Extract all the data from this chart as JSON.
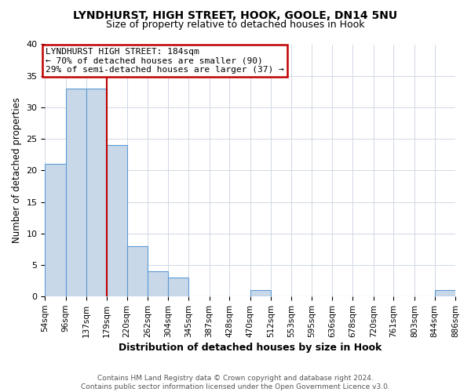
{
  "title": "LYNDHURST, HIGH STREET, HOOK, GOOLE, DN14 5NU",
  "subtitle": "Size of property relative to detached houses in Hook",
  "xlabel": "Distribution of detached houses by size in Hook",
  "ylabel": "Number of detached properties",
  "bin_edges": [
    54,
    96,
    137,
    179,
    220,
    262,
    304,
    345,
    387,
    428,
    470,
    512,
    553,
    595,
    636,
    678,
    720,
    761,
    803,
    844,
    886
  ],
  "bin_labels": [
    "54sqm",
    "96sqm",
    "137sqm",
    "179sqm",
    "220sqm",
    "262sqm",
    "304sqm",
    "345sqm",
    "387sqm",
    "428sqm",
    "470sqm",
    "512sqm",
    "553sqm",
    "595sqm",
    "636sqm",
    "678sqm",
    "720sqm",
    "761sqm",
    "803sqm",
    "844sqm",
    "886sqm"
  ],
  "counts": [
    21,
    33,
    33,
    24,
    8,
    4,
    3,
    0,
    0,
    0,
    1,
    0,
    0,
    0,
    0,
    0,
    0,
    0,
    0,
    1
  ],
  "bar_color": "#c8d8e8",
  "bar_edge_color": "#5b9bd5",
  "vline_x": 179,
  "vline_color": "#c00000",
  "annotation_title": "LYNDHURST HIGH STREET: 184sqm",
  "annotation_line1": "← 70% of detached houses are smaller (90)",
  "annotation_line2": "29% of semi-detached houses are larger (37) →",
  "annotation_box_color": "#c00000",
  "ylim": [
    0,
    40
  ],
  "yticks": [
    0,
    5,
    10,
    15,
    20,
    25,
    30,
    35,
    40
  ],
  "footer1": "Contains HM Land Registry data © Crown copyright and database right 2024.",
  "footer2": "Contains public sector information licensed under the Open Government Licence v3.0.",
  "background_color": "#ffffff",
  "grid_color": "#d0d8e4"
}
